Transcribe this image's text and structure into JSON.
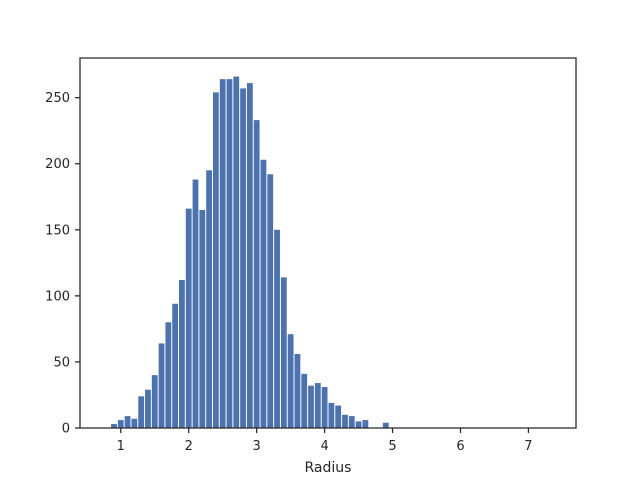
{
  "chart_data": {
    "type": "bar",
    "xlabel": "Radius",
    "ylabel": "",
    "title": "",
    "xlim": [
      0.4,
      7.7
    ],
    "ylim": [
      0,
      280
    ],
    "xticks": [
      1,
      2,
      3,
      4,
      5,
      6,
      7
    ],
    "yticks": [
      0,
      50,
      100,
      150,
      200,
      250
    ],
    "bar_color": "#4c72b0",
    "bin_width": 0.1,
    "bin_starts": [
      0.85,
      0.95,
      1.05,
      1.15,
      1.25,
      1.35,
      1.45,
      1.55,
      1.65,
      1.75,
      1.85,
      1.95,
      2.05,
      2.15,
      2.25,
      2.35,
      2.45,
      2.55,
      2.65,
      2.75,
      2.85,
      2.95,
      3.05,
      3.15,
      3.25,
      3.35,
      3.45,
      3.55,
      3.65,
      3.75,
      3.85,
      3.95,
      4.05,
      4.15,
      4.25,
      4.35,
      4.45,
      4.55,
      4.65,
      4.75,
      4.85,
      4.95
    ],
    "values": [
      3,
      6,
      9,
      7,
      24,
      29,
      40,
      64,
      80,
      94,
      112,
      166,
      188,
      165,
      195,
      254,
      264,
      264,
      266,
      257,
      261,
      233,
      203,
      192,
      150,
      114,
      71,
      56,
      41,
      32,
      34,
      31,
      19,
      17,
      10,
      9,
      5,
      6,
      0,
      0,
      4,
      0
    ],
    "grid": false,
    "legend": "none"
  }
}
